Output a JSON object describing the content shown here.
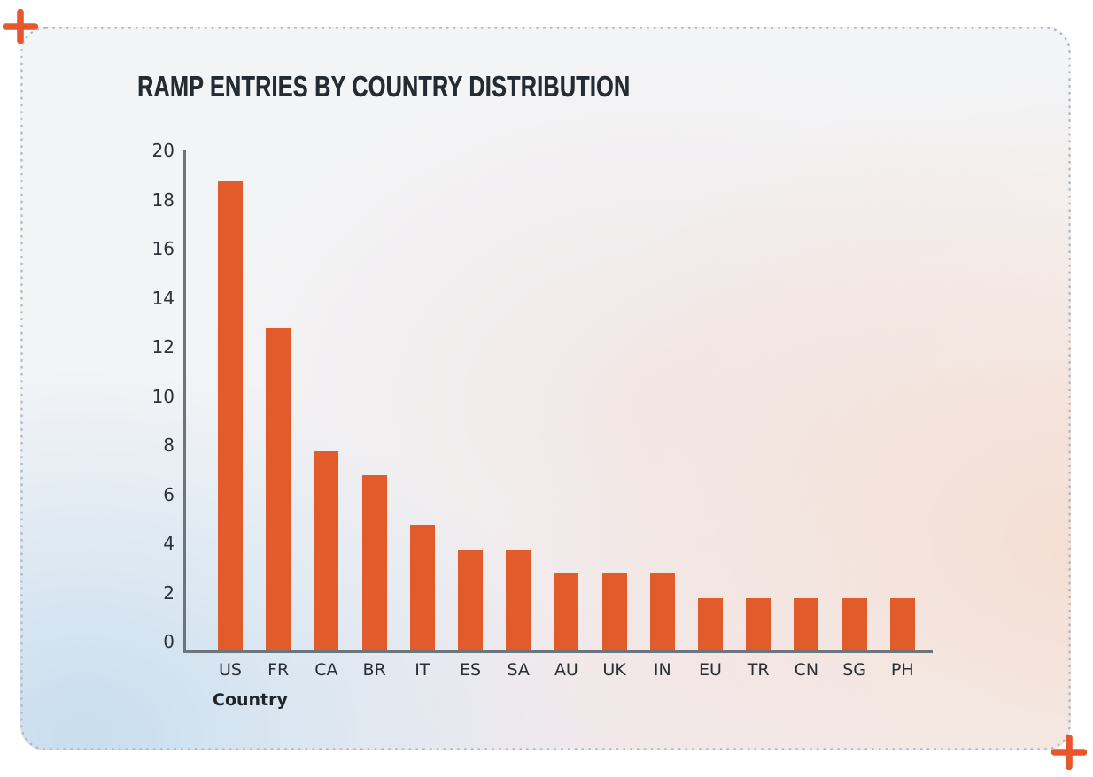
{
  "card": {
    "corner_plus_marks": [
      "top-left",
      "bottom-right"
    ]
  },
  "chart_data": {
    "type": "bar",
    "title": "RAMP ENTRIES BY COUNTRY DISTRIBUTION",
    "categories": [
      "US",
      "FR",
      "CA",
      "BR",
      "IT",
      "ES",
      "SA",
      "AU",
      "UK",
      "IN",
      "EU",
      "TR",
      "CN",
      "SG",
      "PH"
    ],
    "values": [
      18.8,
      12.8,
      7.8,
      6.8,
      4.8,
      3.8,
      3.8,
      2.8,
      2.8,
      2.8,
      1.8,
      1.8,
      1.8,
      1.8,
      1.8
    ],
    "xlabel": "Country",
    "ylabel": "",
    "ylim": [
      0,
      20
    ],
    "yticks": [
      0,
      2,
      4,
      6,
      8,
      10,
      12,
      14,
      16,
      18,
      20
    ],
    "grid": false,
    "legend_position": "none"
  },
  "colors": {
    "bar": "#e25b2a",
    "plus_mark": "#e7562c",
    "title_text": "#242b32",
    "axis_line": "#6d757c",
    "tick_text": "#2c3238",
    "card_base": "#f3f4f6",
    "card_border_dots": "#aeb7c0",
    "gradient_blue": "#c6dbee",
    "gradient_peach": "#f5dbce"
  },
  "icons": {
    "plus": "plus-crosshair"
  }
}
